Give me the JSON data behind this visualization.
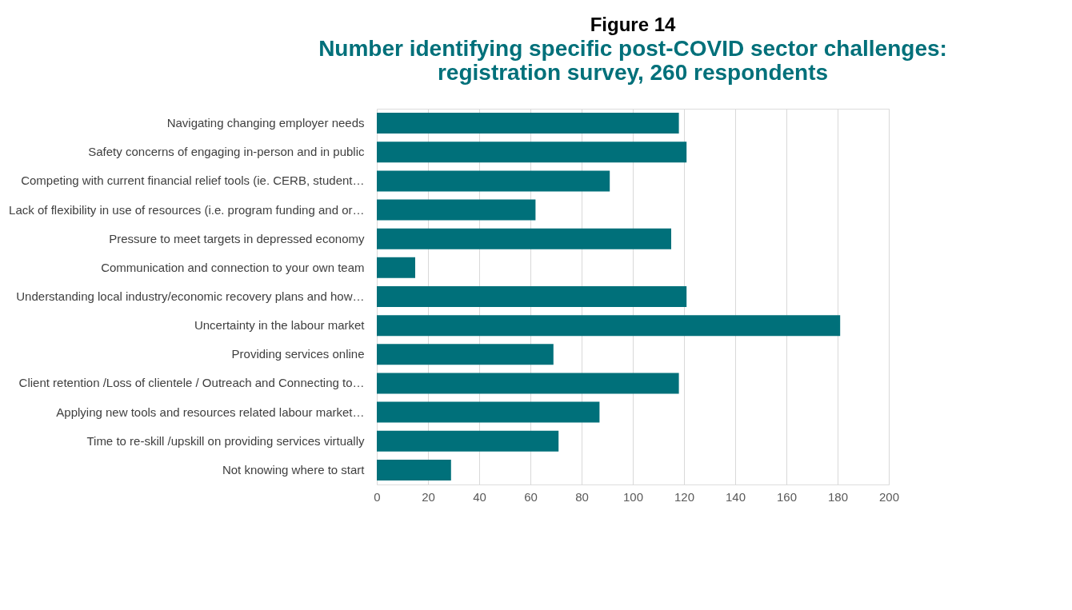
{
  "chart_data": {
    "type": "bar",
    "orientation": "horizontal",
    "title": "Figure 14",
    "subtitle": "Number identifying specific post-COVID sector challenges: registration survey, 260 respondents",
    "categories": [
      "Navigating changing employer needs",
      "Safety concerns of engaging in-person and in public",
      "Competing with current financial relief tools (ie. CERB, student…",
      "Lack of flexibility in use of resources (i.e. program funding and or…",
      "Pressure to meet targets in depressed economy",
      "Communication and connection to your own team",
      "Understanding local industry/economic recovery plans and how…",
      "Uncertainty in the labour market",
      "Providing services online",
      "Client retention /Loss of clientele / Outreach and Connecting to…",
      "Applying new tools and resources related labour market…",
      "Time to re-skill /upskill on providing services virtually",
      "Not knowing where to start"
    ],
    "values": [
      118,
      121,
      91,
      62,
      115,
      15,
      121,
      181,
      69,
      118,
      87,
      71,
      29
    ],
    "color": "#00707a",
    "xlim": [
      0,
      200
    ],
    "xticks": [
      0,
      20,
      40,
      60,
      80,
      100,
      120,
      140,
      160,
      180,
      200
    ],
    "grid": "x"
  }
}
